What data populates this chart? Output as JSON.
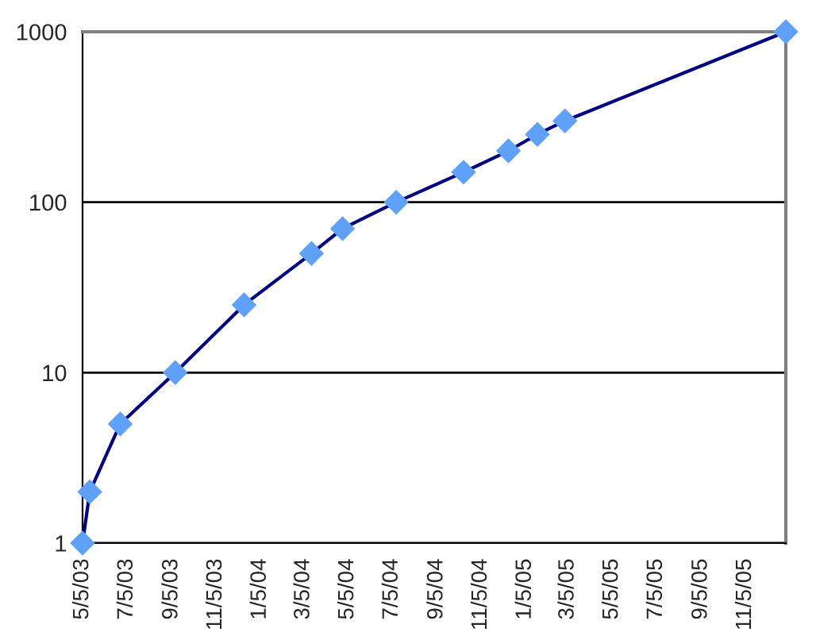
{
  "chart_data": {
    "type": "line",
    "x": [
      "2003-05-05",
      "2003-05-15",
      "2003-06-26",
      "2003-09-10",
      "2003-12-14",
      "2004-03-16",
      "2004-04-28",
      "2004-07-11",
      "2004-10-12",
      "2004-12-13",
      "2005-01-22",
      "2005-03-01",
      "2005-12-31"
    ],
    "series": [
      {
        "color": "#000080",
        "values": [
          1,
          2,
          5,
          10,
          25,
          50,
          70,
          100,
          150,
          200,
          250,
          300,
          1000
        ]
      }
    ],
    "marker": "diamond",
    "line_style": "solid",
    "log": true,
    "grid": "y",
    "legend": false,
    "ylim": [
      1,
      1000
    ],
    "yticks": [
      1,
      10,
      100,
      1000
    ],
    "xlim": [
      "2003-05-05",
      "2005-12-31"
    ],
    "xticks": [
      {
        "value": "2003-05-05",
        "label": "5/5/03"
      },
      {
        "value": "2003-07-05",
        "label": "7/5/03"
      },
      {
        "value": "2003-09-05",
        "label": "9/5/03"
      },
      {
        "value": "2003-11-05",
        "label": "11/5/03"
      },
      {
        "value": "2004-01-05",
        "label": "1/5/04"
      },
      {
        "value": "2004-03-05",
        "label": "3/5/04"
      },
      {
        "value": "2004-05-05",
        "label": "5/5/04"
      },
      {
        "value": "2004-07-05",
        "label": "7/5/04"
      },
      {
        "value": "2004-09-05",
        "label": "9/5/04"
      },
      {
        "value": "2004-11-05",
        "label": "11/5/04"
      },
      {
        "value": "2005-01-05",
        "label": "1/5/05"
      },
      {
        "value": "2005-03-05",
        "label": "3/5/05"
      },
      {
        "value": "2005-05-05",
        "label": "5/5/05"
      },
      {
        "value": "2005-07-05",
        "label": "7/5/05"
      },
      {
        "value": "2005-09-05",
        "label": "9/5/05"
      },
      {
        "value": "2005-11-05",
        "label": "11/5/05"
      }
    ]
  }
}
